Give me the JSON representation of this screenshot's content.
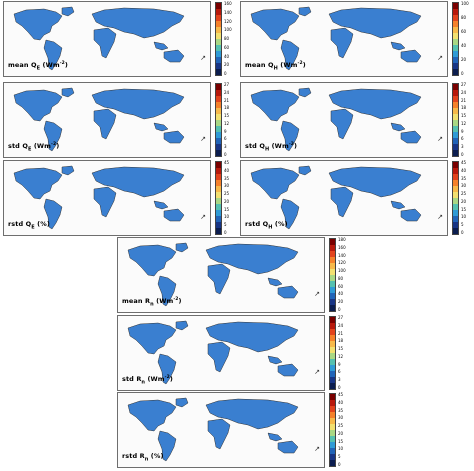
{
  "colorbar_colors": [
    "#7a0000",
    "#b8190c",
    "#e2431d",
    "#f5812b",
    "#f7b94a",
    "#f2e070",
    "#a9d884",
    "#55c1b0",
    "#2f9bd6",
    "#2164b8",
    "#183585",
    "#0b1d4f"
  ],
  "land_color": "#3a7fd0",
  "panels": [
    {
      "id": "mean-qe",
      "label_prefix": "mean",
      "label_symbol": "Q",
      "label_sub": "E",
      "label_unit": " (Wm",
      "label_sup": "-2",
      "label_close": ")",
      "ticks": [
        "160",
        "140",
        "120",
        "100",
        "80",
        "60",
        "40",
        "20",
        "0"
      ]
    },
    {
      "id": "mean-qh",
      "label_prefix": "mean",
      "label_symbol": "Q",
      "label_sub": "H",
      "label_unit": " (Wm",
      "label_sup": "-2",
      "label_close": ")",
      "ticks": [
        "100",
        "80",
        "60",
        "40",
        "20",
        "0"
      ]
    },
    {
      "id": "std-qe",
      "label_prefix": "std",
      "label_symbol": "Q",
      "label_sub": "E",
      "label_unit": " (Wm",
      "label_sup": "-2",
      "label_close": ")",
      "ticks": [
        "27",
        "24",
        "21",
        "18",
        "15",
        "12",
        "9",
        "6",
        "3",
        "0"
      ]
    },
    {
      "id": "std-qh",
      "label_prefix": "std",
      "label_symbol": "Q",
      "label_sub": "H",
      "label_unit": " (Wm",
      "label_sup": "-2",
      "label_close": ")",
      "ticks": [
        "27",
        "24",
        "21",
        "18",
        "15",
        "12",
        "9",
        "6",
        "3",
        "0"
      ]
    },
    {
      "id": "rstd-qe",
      "label_prefix": "rstd",
      "label_symbol": "Q",
      "label_sub": "E",
      "label_unit": " (%)",
      "label_sup": "",
      "label_close": "",
      "ticks": [
        "45",
        "40",
        "35",
        "30",
        "25",
        "20",
        "15",
        "10",
        "5",
        "0"
      ]
    },
    {
      "id": "rstd-qh",
      "label_prefix": "rstd",
      "label_symbol": "Q",
      "label_sub": "H",
      "label_unit": " (%)",
      "label_sup": "",
      "label_close": "",
      "ticks": [
        "45",
        "40",
        "35",
        "30",
        "25",
        "20",
        "15",
        "10",
        "5",
        "0"
      ]
    },
    {
      "id": "mean-rn",
      "label_prefix": "mean",
      "label_symbol": "R",
      "label_sub": "n",
      "label_unit": " (Wm",
      "label_sup": "-2",
      "label_close": ")",
      "ticks": [
        "180",
        "160",
        "140",
        "120",
        "100",
        "80",
        "60",
        "40",
        "20",
        "0"
      ]
    },
    {
      "id": "std-rn",
      "label_prefix": "std",
      "label_symbol": "R",
      "label_sub": "n",
      "label_unit": " (Wm",
      "label_sup": "-2",
      "label_close": ")",
      "ticks": [
        "27",
        "24",
        "21",
        "18",
        "15",
        "12",
        "9",
        "6",
        "3",
        "0"
      ]
    },
    {
      "id": "rstd-rn",
      "label_prefix": "rstd",
      "label_symbol": "R",
      "label_sub": "n",
      "label_unit": " (%)",
      "label_sup": "",
      "label_close": "",
      "ticks": [
        "45",
        "40",
        "35",
        "30",
        "25",
        "20",
        "15",
        "10",
        "5",
        "0"
      ]
    }
  ]
}
